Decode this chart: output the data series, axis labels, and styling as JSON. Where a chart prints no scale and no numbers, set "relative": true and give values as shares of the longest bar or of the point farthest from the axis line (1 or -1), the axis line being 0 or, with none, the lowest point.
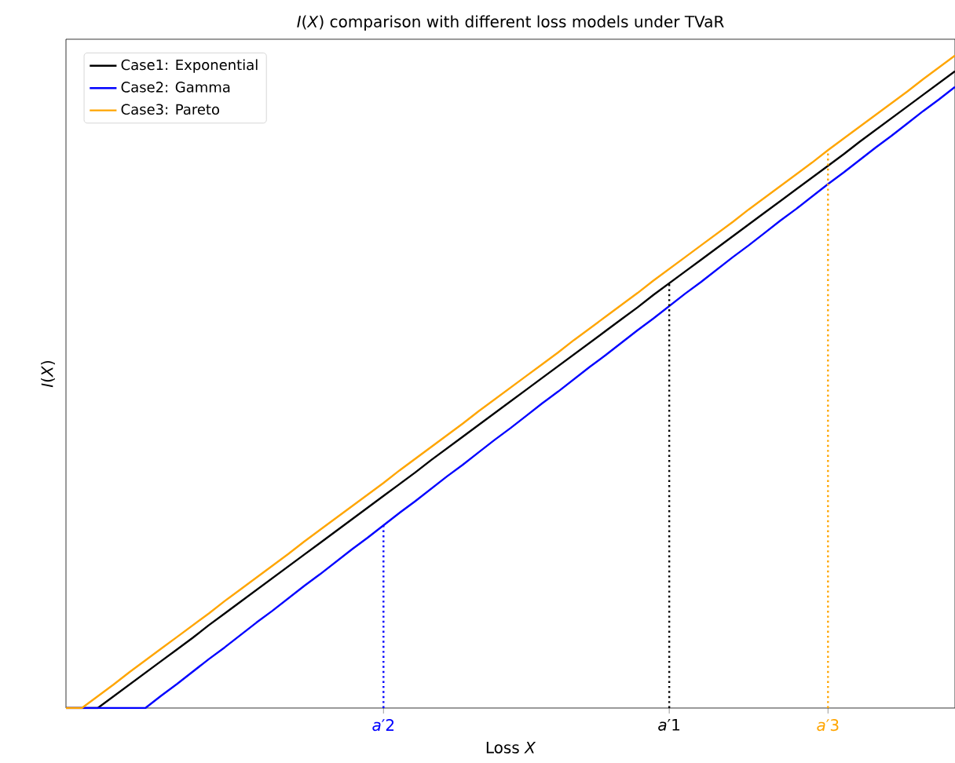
{
  "chart_data": {
    "type": "line",
    "title": "*I*(*X*) comparison with different loss models under TVaR",
    "xlabel": "Loss *X*",
    "ylabel": "*I*(*X*)",
    "relative": true,
    "categories": [
      null,
      null,
      null,
      null,
      null,
      null,
      null,
      null,
      null,
      null,
      null,
      null,
      null,
      null,
      null,
      null,
      null,
      null,
      null,
      null,
      "*a*′2",
      null,
      null,
      null,
      null,
      null,
      null,
      null,
      null,
      null,
      null,
      null,
      null,
      null,
      null,
      null,
      null,
      null,
      "*a*′1",
      null,
      null,
      null,
      null,
      null,
      null,
      null,
      null,
      null,
      "*a*′3",
      null,
      null,
      null,
      null,
      null,
      null,
      null,
      null
    ],
    "series": [
      {
        "name": "Case1: Exponential",
        "color": "#000000",
        "values": [
          0,
          0,
          0,
          0.018,
          0.036,
          0.054,
          0.072,
          0.09,
          0.108,
          0.127,
          0.145,
          0.163,
          0.181,
          0.199,
          0.217,
          0.235,
          0.253,
          0.271,
          0.289,
          0.307,
          0.325,
          0.343,
          0.361,
          0.38,
          0.398,
          0.416,
          0.434,
          0.452,
          0.47,
          0.488,
          0.506,
          0.524,
          0.542,
          0.56,
          0.578,
          0.596,
          0.614,
          0.633,
          0.651,
          0.669,
          0.687,
          0.705,
          0.723,
          0.741,
          0.759,
          0.777,
          0.795,
          0.813,
          0.831,
          0.849,
          0.868,
          0.886,
          0.904,
          0.922,
          0.94,
          0.958,
          0.976
        ]
      },
      {
        "name": "Case2: Gamma",
        "color": "#0000ff",
        "values": [
          0,
          0,
          0,
          0,
          0,
          0,
          0.019,
          0.037,
          0.056,
          0.075,
          0.093,
          0.112,
          0.131,
          0.149,
          0.168,
          0.187,
          0.205,
          0.224,
          0.243,
          0.261,
          0.28,
          0.299,
          0.317,
          0.336,
          0.355,
          0.373,
          0.392,
          0.411,
          0.429,
          0.448,
          0.467,
          0.485,
          0.504,
          0.523,
          0.541,
          0.56,
          0.579,
          0.597,
          0.616,
          0.635,
          0.653,
          0.672,
          0.691,
          0.709,
          0.728,
          0.747,
          0.765,
          0.784,
          0.803,
          0.821,
          0.84,
          0.859,
          0.877,
          0.896,
          0.915,
          0.933,
          0.952
        ]
      },
      {
        "name": "Case3: Pareto",
        "color": "#ffa500",
        "values": [
          0,
          0,
          0.018,
          0.036,
          0.055,
          0.073,
          0.091,
          0.109,
          0.127,
          0.145,
          0.164,
          0.182,
          0.2,
          0.218,
          0.236,
          0.255,
          0.273,
          0.291,
          0.309,
          0.327,
          0.345,
          0.364,
          0.382,
          0.4,
          0.418,
          0.436,
          0.455,
          0.473,
          0.491,
          0.509,
          0.527,
          0.545,
          0.564,
          0.582,
          0.6,
          0.618,
          0.636,
          0.655,
          0.673,
          0.691,
          0.709,
          0.727,
          0.745,
          0.764,
          0.782,
          0.8,
          0.818,
          0.836,
          0.855,
          0.873,
          0.891,
          0.909,
          0.927,
          0.945,
          0.964,
          0.982,
          1
        ]
      }
    ],
    "ref_lines": [
      {
        "axis": "x",
        "value": "*a*′2",
        "color": "#0000ff",
        "line_style": "dotted"
      },
      {
        "axis": "x",
        "value": "*a*′1",
        "color": "#000000",
        "line_style": "dotted"
      },
      {
        "axis": "x",
        "value": "*a*′3",
        "color": "#ffa500",
        "line_style": "dotted"
      }
    ],
    "legend": "top left",
    "grid": false,
    "marker": "none",
    "line_style": "solid"
  }
}
